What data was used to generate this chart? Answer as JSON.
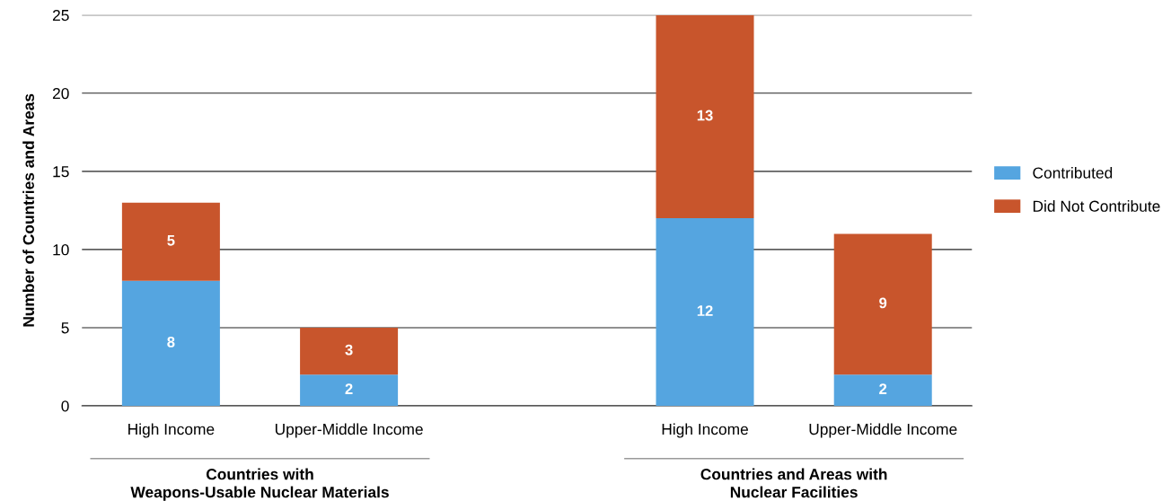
{
  "chart_data": {
    "type": "bar",
    "stacked": true,
    "ylabel": "Number of Countries and Areas",
    "categories": [
      "High Income",
      "Upper-Middle Income",
      null,
      "High Income",
      "Upper-Middle Income"
    ],
    "series": [
      {
        "name": "Contributed",
        "color": "#55a5e0",
        "values": [
          8,
          2,
          null,
          12,
          2
        ]
      },
      {
        "name": "Did Not Contribute",
        "color": "#c8552c",
        "values": [
          5,
          3,
          null,
          13,
          9
        ]
      }
    ],
    "ylim": [
      0,
      25
    ],
    "yticks": [
      0,
      5,
      10,
      15,
      20,
      25
    ],
    "grid": "y",
    "legend": "right",
    "data_labels": true,
    "annotations": [
      "Countries with\nWeapons-Usable Nuclear Materials",
      "Countries and Areas with\nNuclear Facilities"
    ]
  }
}
